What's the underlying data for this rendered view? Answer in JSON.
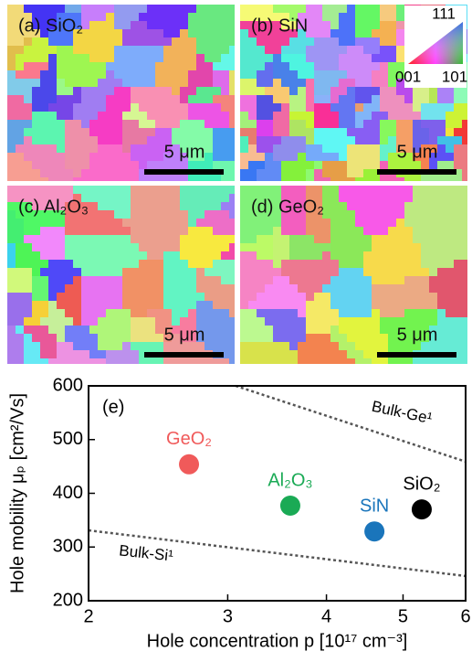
{
  "panels": [
    {
      "label": "(a) SiO₂",
      "scale": "5 μm"
    },
    {
      "label": "(b) SiN",
      "scale": "5 μm"
    },
    {
      "label": "(c) Al₂O₃",
      "scale": "5 μm"
    },
    {
      "label": "(d) GeO₂",
      "scale": "5 μm"
    }
  ],
  "ipf_key": {
    "top": "111",
    "left": "001",
    "right": "101"
  },
  "chart_data": {
    "type": "scatter",
    "panel_label": "(e)",
    "x_label": "Hole concentration p [10¹⁷ cm⁻³]",
    "y_label": "Hole mobility μₚ [cm²/Vs]",
    "xscale": "log",
    "xlim": [
      2,
      6
    ],
    "xticks": [
      2,
      3,
      4,
      5,
      6
    ],
    "ylim": [
      200,
      600
    ],
    "yticks": [
      200,
      300,
      400,
      500,
      600
    ],
    "series": [
      {
        "name": "GeO₂",
        "color": "#f05a5a",
        "x": [
          2.68
        ],
        "values": [
          454
        ]
      },
      {
        "name": "Al₂O₃",
        "color": "#1aaa55",
        "x": [
          3.6
        ],
        "values": [
          377
        ]
      },
      {
        "name": "SiN",
        "color": "#1a75bb",
        "x": [
          4.6
        ],
        "values": [
          329
        ]
      },
      {
        "name": "SiO₂",
        "color": "#000000",
        "x": [
          5.28
        ],
        "values": [
          370
        ]
      }
    ],
    "curves": [
      {
        "name": "Bulk-Ge¹",
        "color": "#555555",
        "x": [
          3.07,
          6
        ],
        "values": [
          600,
          459
        ]
      },
      {
        "name": "Bulk-Si¹",
        "color": "#555555",
        "x": [
          2,
          6
        ],
        "values": [
          331,
          246
        ]
      }
    ]
  }
}
